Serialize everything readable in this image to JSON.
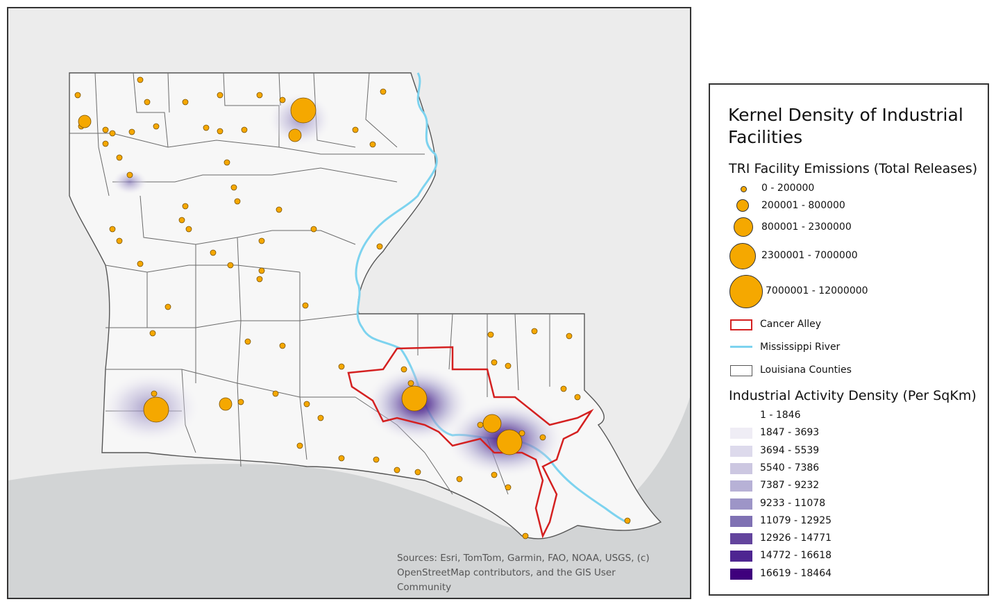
{
  "legend": {
    "title": "Kernel Density of Industrial Facilities",
    "emissions_heading": "TRI Facility Emissions (Total Releases)",
    "emission_classes": [
      "0 - 200000",
      "200001 - 800000",
      "800001 - 2300000",
      "2300001 - 7000000",
      "7000001 - 12000000"
    ],
    "cancer_alley": "Cancer Alley",
    "river": "Mississippi River",
    "counties": "Louisiana Counties",
    "density_heading": "Industrial Activity Density (Per SqKm)",
    "density_classes": [
      "1 - 1846",
      "1847 - 3693",
      "3694 - 5539",
      "5540 - 7386",
      "7387 - 9232",
      "9233 - 11078",
      "11079 - 12925",
      "12926 - 14771",
      "14772 - 16618",
      "16619 - 18464"
    ],
    "density_colors": [
      "#ffffff",
      "#efedf5",
      "#dddaec",
      "#ccc7e1",
      "#b7b1d6",
      "#9d95c7",
      "#7f71b3",
      "#63449d",
      "#4e2591",
      "#3f007d"
    ]
  },
  "colors": {
    "facility": "#f5a800",
    "cancer_alley": "#d42020",
    "river": "#7dd3ef",
    "county_border": "#555555",
    "gulf": "#d2d4d5"
  },
  "sources": {
    "line1": "Sources:  Esri, TomTom, Garmin, FAO, NOAA, USGS, (c)",
    "line2": "OpenStreetMap contributors, and the GIS User Community"
  }
}
